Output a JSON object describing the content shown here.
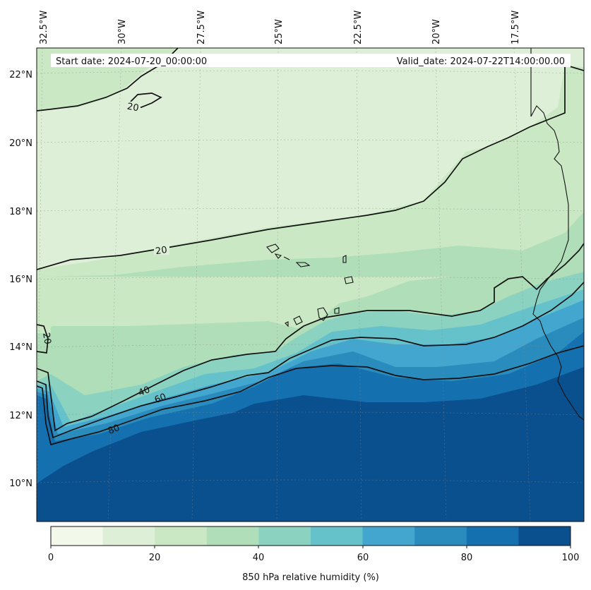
{
  "header": {
    "start_date": "Start date: 2024-07-20_00:00:00",
    "valid_date": "Valid_date: 2024-07-22T14:00:00.00"
  },
  "map": {
    "longitude_labels": [
      "32.5°W",
      "30°W",
      "27.5°W",
      "25°W",
      "22.5°W",
      "20°W",
      "17.5°W"
    ],
    "latitude_labels": [
      "22°N",
      "20°N",
      "18°N",
      "16°N",
      "14°N",
      "12°N",
      "10°N"
    ],
    "contour_labels": [
      "20",
      "20",
      "20",
      "40",
      "60",
      "80"
    ]
  },
  "colorbar": {
    "label": "850 hPa relative humidity (%)",
    "ticks": [
      "0",
      "20",
      "40",
      "60",
      "80",
      "100"
    ],
    "colors": [
      "#f2f9ea",
      "#deefd8",
      "#cbe8c4",
      "#afdeb8",
      "#8cd2c0",
      "#66c2ca",
      "#43a6ce",
      "#2a8bbd",
      "#1570af",
      "#0a4f8e"
    ]
  }
}
